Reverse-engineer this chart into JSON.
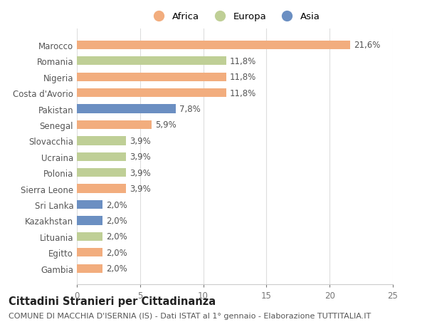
{
  "categories": [
    "Gambia",
    "Egitto",
    "Lituania",
    "Kazakhstan",
    "Sri Lanka",
    "Sierra Leone",
    "Polonia",
    "Ucraina",
    "Slovacchia",
    "Senegal",
    "Pakistan",
    "Costa d'Avorio",
    "Nigeria",
    "Romania",
    "Marocco"
  ],
  "values": [
    2.0,
    2.0,
    2.0,
    2.0,
    2.0,
    3.9,
    3.9,
    3.9,
    3.9,
    5.9,
    7.8,
    11.8,
    11.8,
    11.8,
    21.6
  ],
  "labels": [
    "2,0%",
    "2,0%",
    "2,0%",
    "2,0%",
    "2,0%",
    "3,9%",
    "3,9%",
    "3,9%",
    "3,9%",
    "5,9%",
    "7,8%",
    "11,8%",
    "11,8%",
    "11,8%",
    "21,6%"
  ],
  "continents": [
    "Africa",
    "Africa",
    "Europa",
    "Asia",
    "Asia",
    "Africa",
    "Europa",
    "Europa",
    "Europa",
    "Africa",
    "Asia",
    "Africa",
    "Africa",
    "Europa",
    "Africa"
  ],
  "colors": {
    "Africa": "#F2AD7E",
    "Europa": "#BFCF96",
    "Asia": "#6B8FC2"
  },
  "legend_labels": [
    "Africa",
    "Europa",
    "Asia"
  ],
  "xlim": [
    0,
    25
  ],
  "xticks": [
    0,
    5,
    10,
    15,
    20,
    25
  ],
  "title": "Cittadini Stranieri per Cittadinanza",
  "subtitle": "COMUNE DI MACCHIA D'ISERNIA (IS) - Dati ISTAT al 1° gennaio - Elaborazione TUTTITALIA.IT",
  "bg_color": "#ffffff",
  "bar_height": 0.55,
  "label_fontsize": 8.5,
  "title_fontsize": 10.5,
  "subtitle_fontsize": 8
}
